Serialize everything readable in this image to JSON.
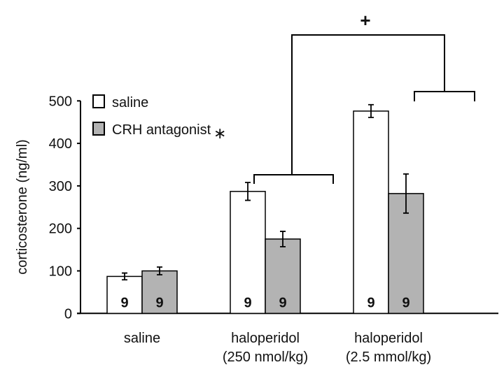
{
  "chart_data": {
    "type": "bar",
    "title": "",
    "xlabel": "",
    "ylabel": "corticosterone (ng/ml)",
    "ylim": [
      0,
      500
    ],
    "yticks": [
      0,
      100,
      200,
      300,
      400,
      500
    ],
    "grid": false,
    "legend_position": "top-left",
    "categories": [
      [
        "saline"
      ],
      [
        "haloperidol",
        "(250 nmol/kg)"
      ],
      [
        "haloperidol",
        "(2.5 mmol/kg)"
      ]
    ],
    "series": [
      {
        "name": "saline",
        "color": "#ffffff",
        "values": [
          87,
          287,
          476
        ],
        "errors": [
          8,
          21,
          15
        ],
        "n_labels": [
          "9",
          "9",
          "9"
        ]
      },
      {
        "name": "CRH antagonist",
        "color": "#b3b3b3",
        "values": [
          100,
          175,
          282
        ],
        "errors": [
          9,
          18,
          46
        ],
        "n_labels": [
          "9",
          "9",
          "9"
        ]
      }
    ],
    "legend_marker": "∗",
    "annotations": [
      {
        "text": "+",
        "meaning": "comparison between haloperidol doses"
      }
    ]
  }
}
